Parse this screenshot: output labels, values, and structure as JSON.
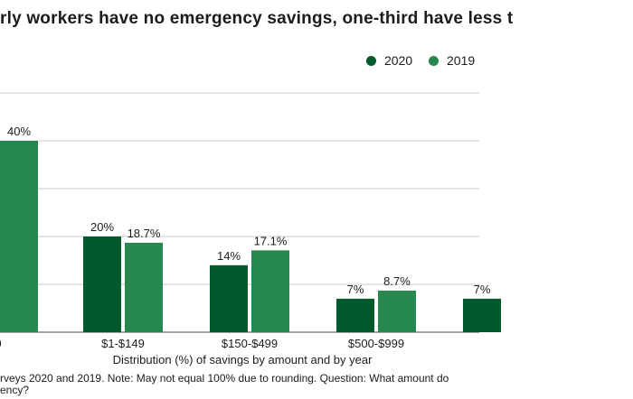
{
  "title_visible": "rly workers have no emergency savings, one-third have less t",
  "note_line1": "rveys 2020 and 2019. Note: May not equal 100% due to rounding. Question: What amount do",
  "note_line2": "ency?",
  "colors": {
    "y2020": "#005a2b",
    "y2019": "#26884e"
  },
  "chart_data": {
    "type": "bar",
    "title": "rly workers have no emergency savings, one-third have less t",
    "xlabel": "Distribution (%) of savings by amount and by year",
    "ylabel": "",
    "ylim": [
      0,
      50
    ],
    "legend_position": "top-right",
    "grid": true,
    "categories": [
      "0",
      "$1-$149",
      "$150-$499",
      "$500-$999",
      ""
    ],
    "series": [
      {
        "name": "2020",
        "values": [
          null,
          20,
          14,
          7,
          7
        ],
        "labels": [
          "",
          "20%",
          "14%",
          "7%",
          "7%"
        ]
      },
      {
        "name": "2019",
        "values": [
          40,
          18.7,
          17.1,
          8.7,
          null
        ],
        "labels": [
          "40%",
          "18.7%",
          "17.1%",
          "8.7%",
          ""
        ]
      }
    ]
  }
}
